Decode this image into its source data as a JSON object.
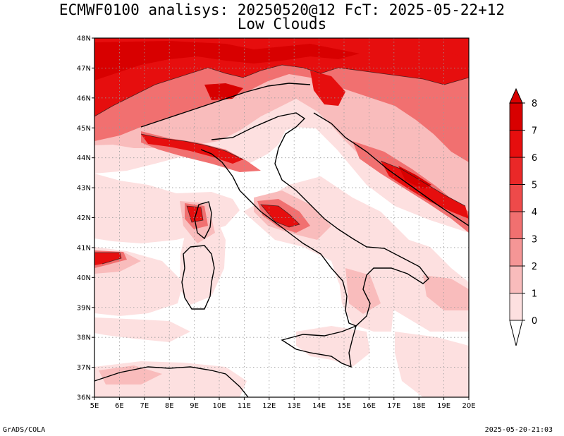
{
  "title_line1": "ECMWF0100 analisys: 20250520@12 FcT: 2025-05-22+12",
  "title_line2": "Low Clouds",
  "footer_left": "GrADS/COLA",
  "footer_right": "2025-05-20-21:03",
  "chart_data": {
    "type": "heatmap",
    "title": "ECMWF0100 analisys: 20250520@12 FcT: 2025-05-22+12",
    "subtitle": "Low Clouds",
    "xlim": [
      5,
      20
    ],
    "ylim": [
      36,
      48
    ],
    "x_ticks": [
      "5E",
      "6E",
      "7E",
      "8E",
      "9E",
      "10E",
      "11E",
      "12E",
      "13E",
      "14E",
      "15E",
      "16E",
      "17E",
      "18E",
      "19E",
      "20E"
    ],
    "y_ticks": [
      "36N",
      "37N",
      "38N",
      "39N",
      "40N",
      "41N",
      "42N",
      "43N",
      "44N",
      "45N",
      "46N",
      "47N",
      "48N"
    ],
    "grid": true,
    "colorbar": {
      "levels": [
        "0",
        "1",
        "2",
        "3",
        "4",
        "5",
        "6",
        "7",
        "8"
      ],
      "colors": [
        "#ffffff",
        "#fde0e0",
        "#f9bcbc",
        "#f59696",
        "#f17070",
        "#ee4a4a",
        "#ea2828",
        "#e60e0e",
        "#d80000"
      ]
    }
  }
}
